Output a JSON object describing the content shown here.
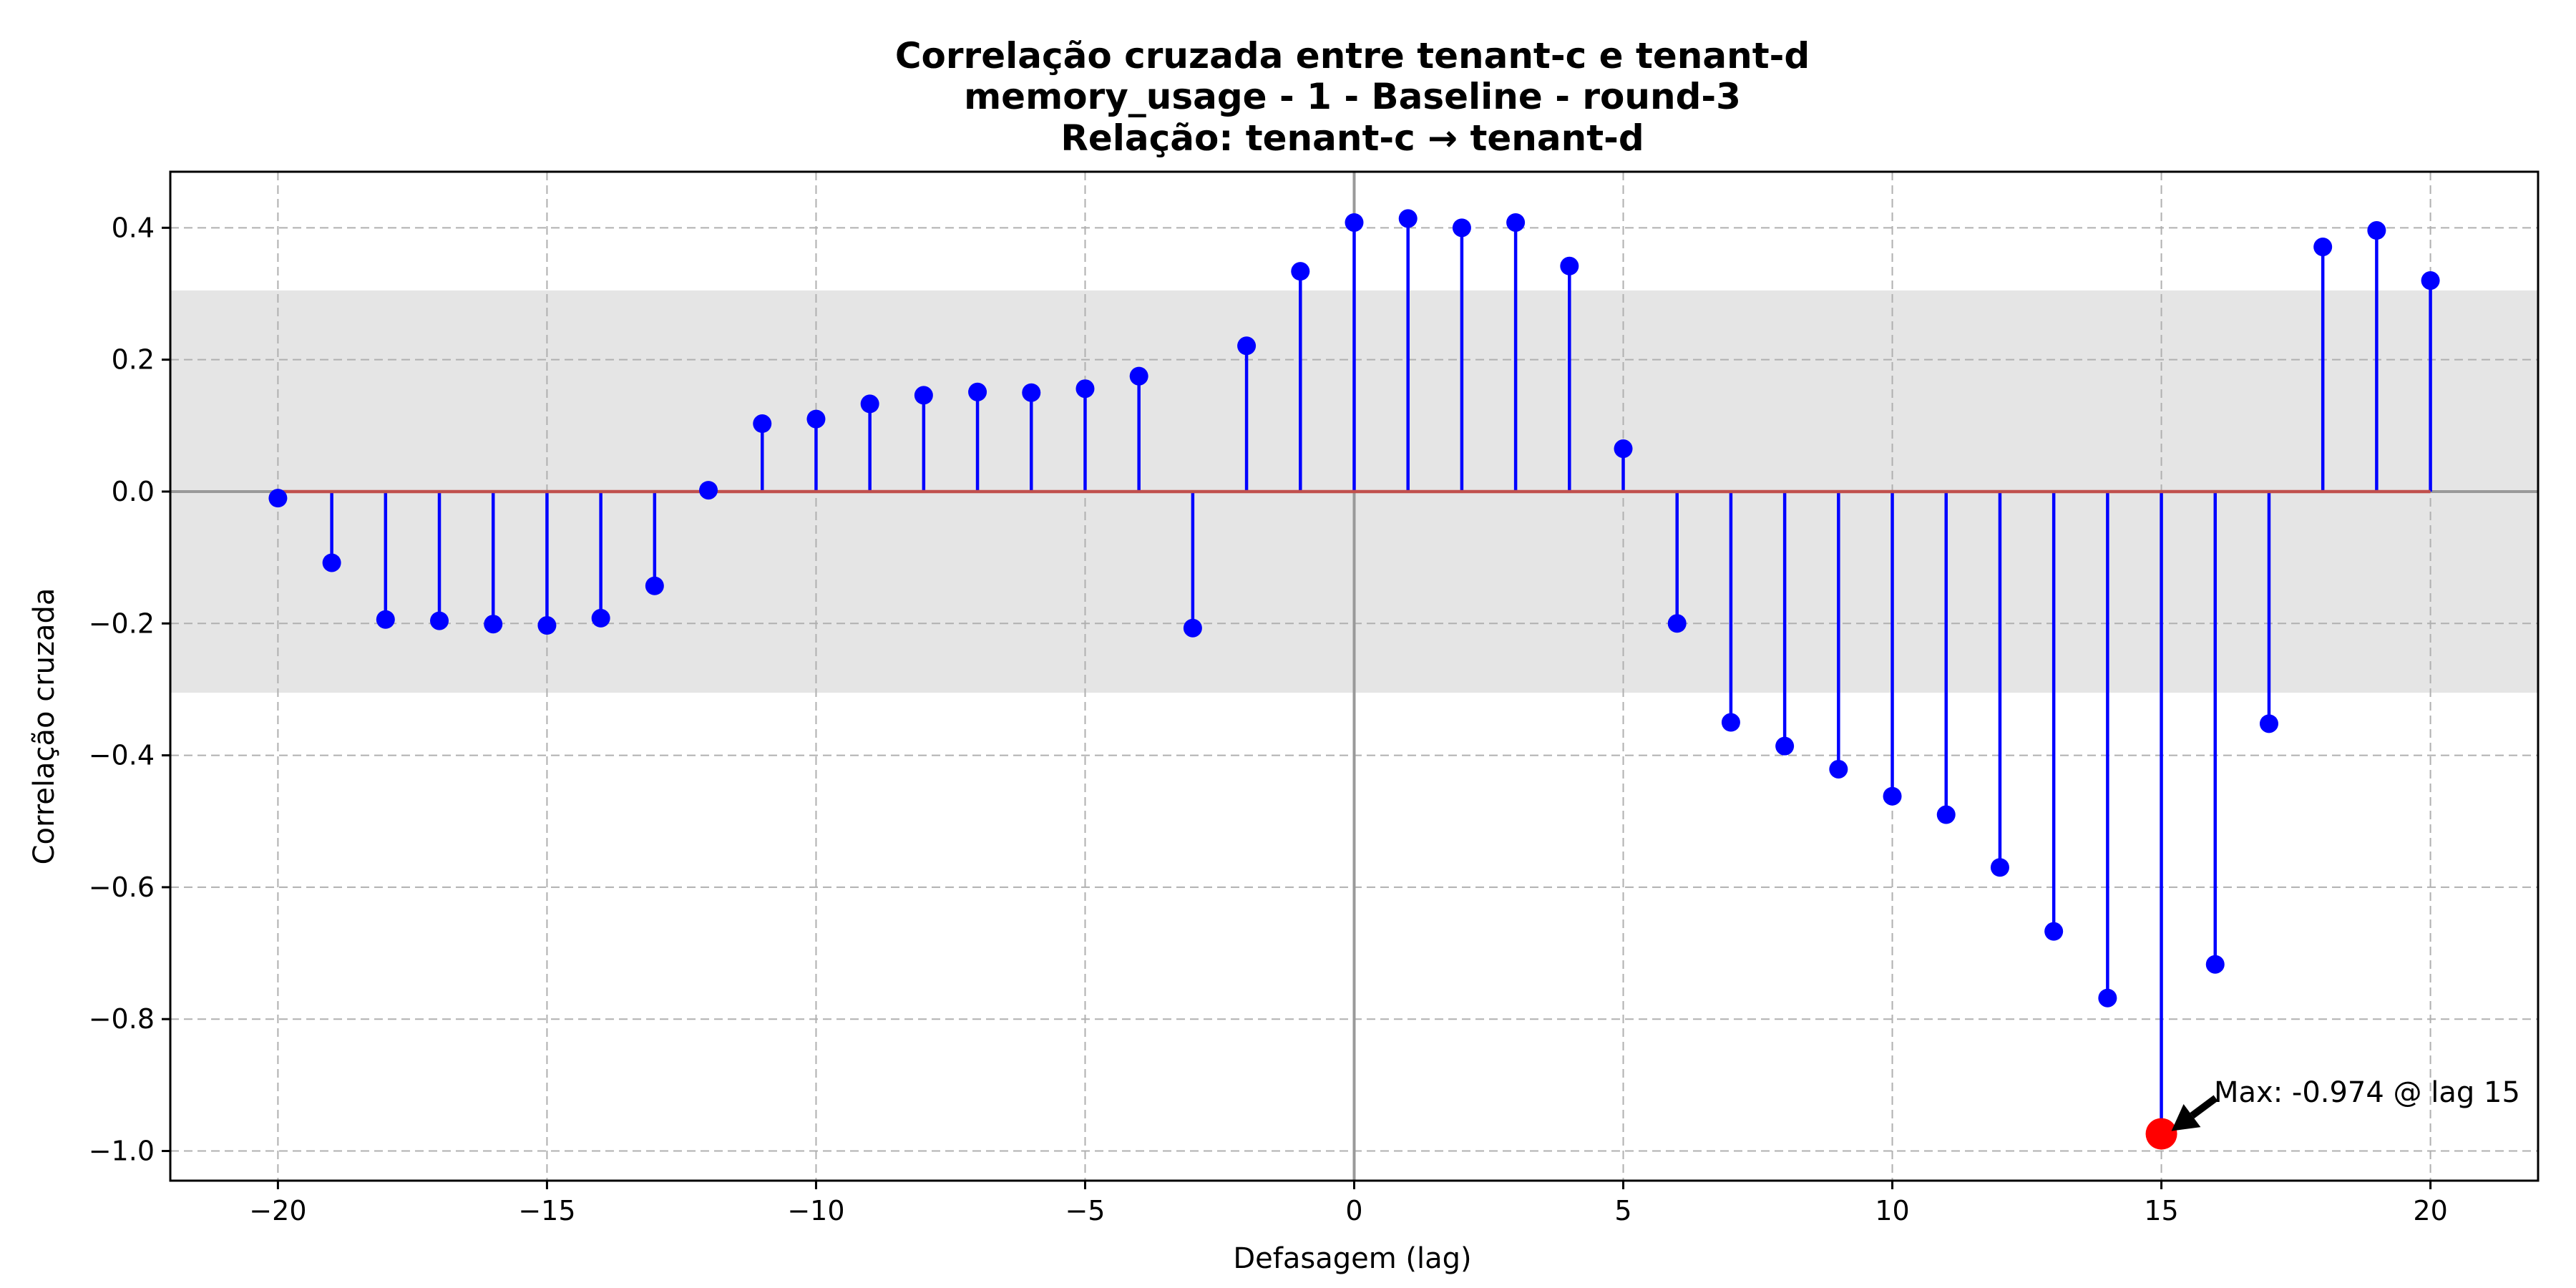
{
  "chart_data": {
    "type": "stem",
    "title_lines": [
      "Correlação cruzada entre tenant-c e tenant-d",
      "memory_usage - 1 - Baseline - round-3",
      "Relação: tenant-c → tenant-d"
    ],
    "xlabel": "Defasagem (lag)",
    "ylabel": "Correlação cruzada",
    "xlim": [
      -22,
      22
    ],
    "ylim": [
      -1.045,
      0.485
    ],
    "x_ticks": [
      -20,
      -15,
      -10,
      -5,
      0,
      5,
      10,
      15,
      20
    ],
    "x_tick_labels": [
      "−20",
      "−15",
      "−10",
      "−5",
      "0",
      "5",
      "10",
      "15",
      "20"
    ],
    "y_ticks": [
      -1.0,
      -0.8,
      -0.6,
      -0.4,
      -0.2,
      0.0,
      0.2,
      0.4
    ],
    "y_tick_labels": [
      "−1.0",
      "−0.8",
      "−0.6",
      "−0.4",
      "−0.2",
      "0.0",
      "0.2",
      "0.4"
    ],
    "grid": true,
    "significance_band": [
      -0.305,
      0.305
    ],
    "lags": [
      -20,
      -19,
      -18,
      -17,
      -16,
      -15,
      -14,
      -13,
      -12,
      -11,
      -10,
      -9,
      -8,
      -7,
      -6,
      -5,
      -4,
      -3,
      -2,
      -1,
      0,
      1,
      2,
      3,
      4,
      5,
      6,
      7,
      8,
      9,
      10,
      11,
      12,
      13,
      14,
      15,
      16,
      17,
      18,
      19,
      20
    ],
    "values": [
      -0.01,
      -0.108,
      -0.194,
      -0.196,
      -0.201,
      -0.203,
      -0.192,
      -0.143,
      0.002,
      0.103,
      0.11,
      0.133,
      0.146,
      0.151,
      0.15,
      0.156,
      0.175,
      -0.207,
      0.221,
      0.334,
      0.408,
      0.414,
      0.4,
      0.408,
      0.342,
      0.065,
      -0.2,
      -0.35,
      -0.386,
      -0.421,
      -0.462,
      -0.49,
      -0.57,
      -0.667,
      -0.768,
      -0.974,
      -0.717,
      -0.352,
      0.371,
      0.396,
      0.32
    ],
    "max_point": {
      "lag": 15,
      "value": -0.974
    },
    "annotation": "Max: -0.974 @ lag 15",
    "colors": {
      "stem": "#0000ff",
      "marker": "#0000ff",
      "baseline": "#c0504d",
      "max_marker": "#ff0000",
      "band": "#e5e5e5",
      "grid": "#b0b0b0",
      "zero_line": "#999999"
    }
  }
}
